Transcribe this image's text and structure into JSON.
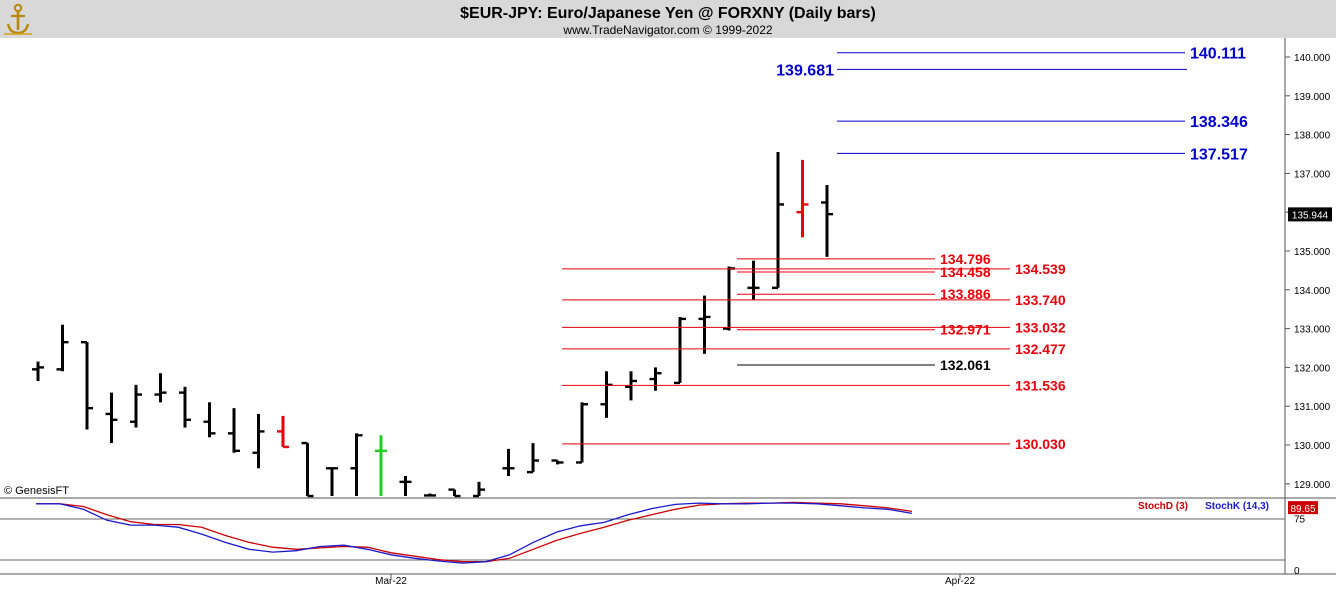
{
  "header": {
    "title": "$EUR-JPY:  Euro/Japanese Yen @ FORXNY  (Daily bars)",
    "subtitle": "www.TradeNavigator.com © 1999-2022",
    "logo_icon": "anchor-logo-icon"
  },
  "footer": {
    "copyright": "© GenesisFT",
    "x_labels": [
      "Mar-22",
      "Apr-22"
    ]
  },
  "colors": {
    "bar": "#000000",
    "bar_down": "#e8000b",
    "bar_up": "#22cc22",
    "fib_red": "#e8000b",
    "fib_blue": "#0000cc",
    "stochD": "#cc0000",
    "stochK": "#1a1acc",
    "header_bg": "#d8d8d8"
  },
  "chart_data": [
    {
      "type": "bar",
      "subtype": "ohlc",
      "title": "$EUR-JPY:  Euro/Japanese Yen @ FORXNY  (Daily bars)",
      "y_axis_ticks": [
        "140.000",
        "139.000",
        "138.000",
        "137.000",
        "136.000",
        "135.000",
        "134.000",
        "133.000",
        "132.000",
        "131.000",
        "130.000",
        "129.000"
      ],
      "ylim": [
        128.7,
        140.5
      ],
      "last_price": "135.944",
      "x_ticks": [
        "Mar-22",
        "Apr-22"
      ],
      "bars": [
        {
          "o": 131.95,
          "h": 132.15,
          "l": 131.65,
          "c": 132.0
        },
        {
          "o": 131.95,
          "h": 133.1,
          "l": 131.9,
          "c": 132.65
        },
        {
          "o": 132.65,
          "h": 132.65,
          "l": 130.4,
          "c": 130.95
        },
        {
          "o": 130.8,
          "h": 131.35,
          "l": 130.05,
          "c": 130.65
        },
        {
          "o": 130.6,
          "h": 131.55,
          "l": 130.45,
          "c": 131.3
        },
        {
          "o": 131.3,
          "h": 131.85,
          "l": 131.1,
          "c": 131.35
        },
        {
          "o": 131.35,
          "h": 131.5,
          "l": 130.45,
          "c": 130.65
        },
        {
          "o": 130.6,
          "h": 131.1,
          "l": 130.2,
          "c": 130.3
        },
        {
          "o": 130.3,
          "h": 130.95,
          "l": 129.8,
          "c": 129.85
        },
        {
          "o": 129.8,
          "h": 130.8,
          "l": 129.4,
          "c": 130.35
        },
        {
          "o": 130.35,
          "h": 130.75,
          "l": 129.95,
          "c": 129.95,
          "color": "down"
        },
        {
          "o": 130.05,
          "h": 130.05,
          "l": 128.5,
          "c": 128.5
        },
        {
          "o": 129.4,
          "h": 129.4,
          "l": 128.5,
          "c": 129.4
        },
        {
          "o": 129.4,
          "h": 130.3,
          "l": 128.5,
          "c": 130.25
        },
        {
          "o": 129.85,
          "h": 130.25,
          "l": 128.5,
          "c": 129.85,
          "color": "up"
        },
        {
          "o": 129.05,
          "h": 129.2,
          "l": 128.5,
          "c": 129.05
        },
        {
          "o": 128.7,
          "h": 128.75,
          "l": 128.5,
          "c": 128.7
        },
        {
          "o": 128.85,
          "h": 128.85,
          "l": 128.5,
          "c": 128.6
        },
        {
          "o": 128.5,
          "h": 129.05,
          "l": 128.5,
          "c": 128.85
        },
        {
          "o": 129.4,
          "h": 129.9,
          "l": 129.2,
          "c": 129.4
        },
        {
          "o": 129.3,
          "h": 130.05,
          "l": 129.3,
          "c": 129.6
        },
        {
          "o": 129.6,
          "h": 129.6,
          "l": 129.5,
          "c": 129.55
        },
        {
          "o": 129.55,
          "h": 131.1,
          "l": 129.55,
          "c": 131.05
        },
        {
          "o": 131.05,
          "h": 131.9,
          "l": 130.7,
          "c": 131.55
        },
        {
          "o": 131.5,
          "h": 131.9,
          "l": 131.15,
          "c": 131.65
        },
        {
          "o": 131.7,
          "h": 132.0,
          "l": 131.4,
          "c": 131.85
        },
        {
          "o": 131.6,
          "h": 133.3,
          "l": 131.6,
          "c": 133.25
        },
        {
          "o": 133.25,
          "h": 133.85,
          "l": 132.35,
          "c": 133.3
        },
        {
          "o": 133.0,
          "h": 134.6,
          "l": 132.95,
          "c": 134.55
        },
        {
          "o": 134.05,
          "h": 134.75,
          "l": 133.75,
          "c": 134.05
        },
        {
          "o": 134.05,
          "h": 137.55,
          "l": 134.05,
          "c": 136.2
        },
        {
          "o": 136.0,
          "h": 137.35,
          "l": 135.35,
          "c": 136.2,
          "color": "down"
        },
        {
          "o": 136.25,
          "h": 136.7,
          "l": 134.85,
          "c": 135.95
        }
      ],
      "red_levels": [
        {
          "label": "134.796",
          "style": "short",
          "text_color": "red"
        },
        {
          "label": "134.539",
          "style": "long",
          "text_color": "red"
        },
        {
          "label": "134.458",
          "style": "short",
          "text_color": "red"
        },
        {
          "label": "133.886",
          "style": "short",
          "text_color": "red"
        },
        {
          "label": "133.740",
          "style": "long",
          "text_color": "red"
        },
        {
          "label": "132.971",
          "style": "short",
          "text_color": "red"
        },
        {
          "label": "133.032",
          "style": "long",
          "text_color": "red"
        },
        {
          "label": "132.477",
          "style": "long",
          "text_color": "red"
        },
        {
          "label": "132.061",
          "style": "short",
          "text_color": "black"
        },
        {
          "label": "131.536",
          "style": "long",
          "text_color": "red"
        },
        {
          "label": "130.030",
          "style": "long",
          "text_color": "red"
        }
      ],
      "blue_levels": [
        "140.111",
        "139.681",
        "138.346",
        "137.517"
      ]
    },
    {
      "type": "line",
      "subtype": "stochastic",
      "series": [
        {
          "name": "StochD (3)",
          "values": [
            96,
            96,
            92,
            80,
            70,
            66,
            66,
            62,
            50,
            40,
            33,
            30,
            32,
            34,
            33,
            25,
            20,
            15,
            12,
            12,
            17,
            30,
            43,
            53,
            62,
            72,
            80,
            88,
            94,
            96,
            97,
            97,
            98,
            97,
            96,
            93,
            90,
            85
          ]
        },
        {
          "name": "StochK (14,3)",
          "values": [
            96,
            96,
            88,
            72,
            65,
            65,
            62,
            52,
            40,
            30,
            26,
            28,
            34,
            36,
            30,
            22,
            17,
            13,
            10,
            12,
            22,
            40,
            55,
            64,
            69,
            80,
            89,
            95,
            97,
            96,
            96,
            97,
            97,
            96,
            93,
            90,
            88,
            82
          ]
        }
      ],
      "y_axis_ticks": [
        "75",
        "0"
      ],
      "last_value": "89.65",
      "ylim": [
        0,
        100
      ]
    }
  ]
}
